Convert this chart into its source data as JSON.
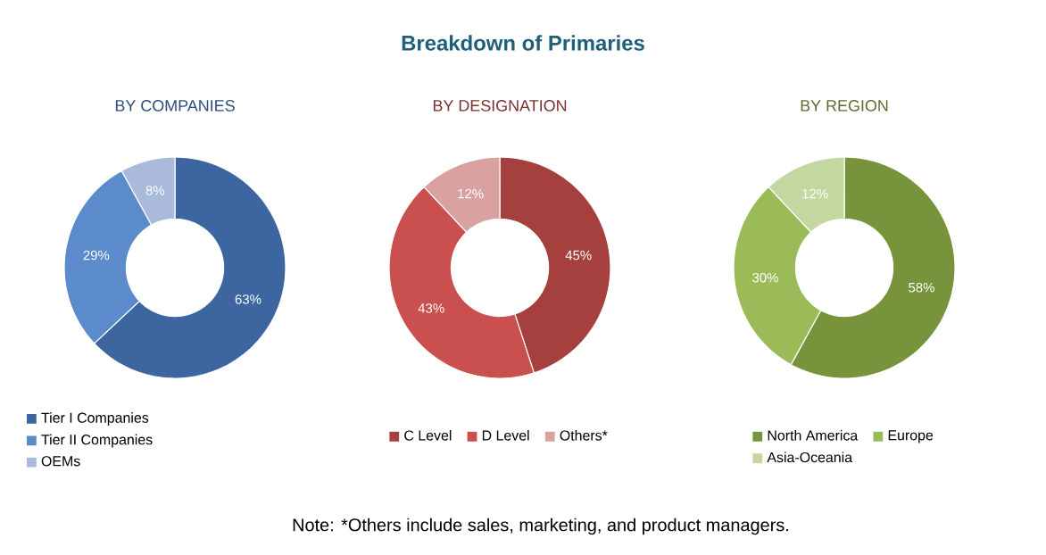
{
  "chart_data": [
    {
      "type": "other",
      "title": "Breakdown of Primaries",
      "annotations": [
        "Note: *Others include sales, marketing, and product managers."
      ]
    },
    {
      "type": "donut",
      "title": "BY COMPANIES",
      "categories": [
        "Tier I Companies",
        "Tier II Companies",
        "OEMs"
      ],
      "values": [
        63,
        29,
        8
      ],
      "value_labels": [
        "63%",
        "29%",
        "8%"
      ],
      "colors": [
        "#3d65a0",
        "#5b8bcb",
        "#a9badb"
      ],
      "legend": "bottom left"
    },
    {
      "type": "donut",
      "title": "BY DESIGNATION",
      "categories": [
        "C Level",
        "D Level",
        "Others*"
      ],
      "values": [
        45,
        43,
        12
      ],
      "value_labels": [
        "45%",
        "43%",
        "12%"
      ],
      "colors": [
        "#a6403e",
        "#c9504e",
        "#d9a1a0"
      ],
      "legend": "bottom"
    },
    {
      "type": "donut",
      "title": "BY REGION",
      "categories": [
        "North America",
        "Europe",
        "Asia-Oceania"
      ],
      "values": [
        58,
        30,
        12
      ],
      "value_labels": [
        "58%",
        "30%",
        "12%"
      ],
      "colors": [
        "#77933c",
        "#9bbb59",
        "#c4d7a0"
      ],
      "legend": "bottom"
    }
  ]
}
